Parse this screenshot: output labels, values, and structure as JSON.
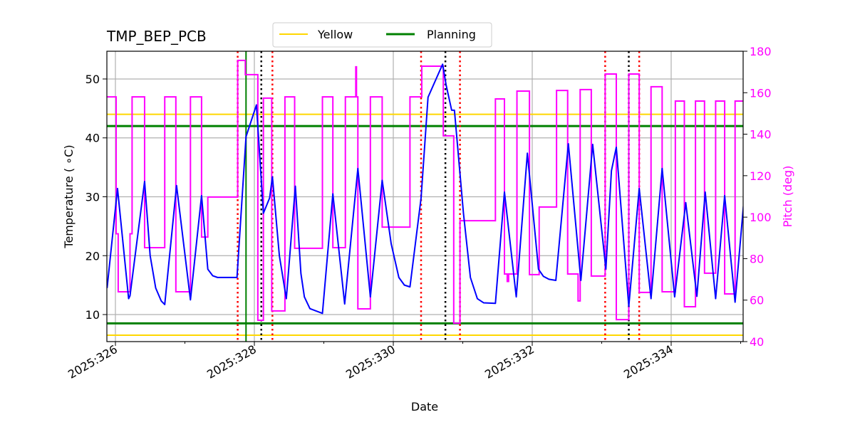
{
  "chart_data": {
    "type": "line",
    "title": "TMP_BEP_PCB",
    "xlabel": "Date",
    "ylabel": "Temperature ( ∘C)",
    "y2label": "Pitch (deg)",
    "xlim": [
      325.877,
      335.036
    ],
    "ylim": [
      5.41,
      54.71
    ],
    "y2lim": [
      40,
      180
    ],
    "grid": true,
    "legend_placement": "top-center (above plot)",
    "x_ticks": [
      {
        "value": 326,
        "label": "2025:326"
      },
      {
        "value": 328,
        "label": "2025:328"
      },
      {
        "value": 330,
        "label": "2025:330"
      },
      {
        "value": 332,
        "label": "2025:332"
      },
      {
        "value": 334,
        "label": "2025:334"
      }
    ],
    "x_minor_ticks": [
      327,
      329,
      331,
      333,
      335
    ],
    "y_ticks": [
      10,
      20,
      30,
      40,
      50
    ],
    "y2_ticks": [
      40,
      60,
      80,
      100,
      120,
      140,
      160,
      180
    ],
    "colors": {
      "temperature": "#0000ff",
      "pitch": "#ff00ff",
      "yellow": "#ffd700",
      "planning": "#008000",
      "red_marker": "#ff0000",
      "black_marker": "#000000",
      "grid": "#b0b0b0"
    },
    "legend": [
      {
        "label": "Yellow",
        "color": "#ffd700"
      },
      {
        "label": "Planning",
        "color": "#008000"
      }
    ],
    "limit_lines": {
      "yellow": [
        44.0,
        6.5
      ],
      "planning": [
        42.0,
        8.5
      ],
      "planning_vertical_day": 327.88
    },
    "red_markers": [
      327.76,
      328.26,
      330.4,
      330.96,
      333.05,
      333.54
    ],
    "black_markers": [
      328.1,
      330.75,
      333.39
    ],
    "temperature": [
      [
        325.88,
        14.5
      ],
      [
        326.03,
        31.4
      ],
      [
        326.19,
        12.7
      ],
      [
        326.21,
        13.2
      ],
      [
        326.42,
        32.6
      ],
      [
        326.5,
        20
      ],
      [
        326.58,
        14.5
      ],
      [
        326.66,
        12.3
      ],
      [
        326.71,
        11.7
      ],
      [
        326.88,
        31.9
      ],
      [
        327.08,
        12.5
      ],
      [
        327.24,
        30.2
      ],
      [
        327.33,
        17.7
      ],
      [
        327.4,
        16.6
      ],
      [
        327.47,
        16.3
      ],
      [
        327.75,
        16.3
      ],
      [
        327.88,
        40.2
      ],
      [
        328.03,
        45.6
      ],
      [
        328.13,
        27.2
      ],
      [
        328.22,
        29.8
      ],
      [
        328.26,
        33.4
      ],
      [
        328.36,
        20
      ],
      [
        328.46,
        12.7
      ],
      [
        328.59,
        31.8
      ],
      [
        328.67,
        17
      ],
      [
        328.72,
        13
      ],
      [
        328.8,
        11
      ],
      [
        328.98,
        10.2
      ],
      [
        329.13,
        30.5
      ],
      [
        329.3,
        11.8
      ],
      [
        329.49,
        34.8
      ],
      [
        329.67,
        13.0
      ],
      [
        329.84,
        32.8
      ],
      [
        329.97,
        22
      ],
      [
        330.08,
        16.3
      ],
      [
        330.16,
        15.0
      ],
      [
        330.24,
        14.7
      ],
      [
        330.4,
        29.8
      ],
      [
        330.5,
        46.9
      ],
      [
        330.62,
        50.1
      ],
      [
        330.71,
        52.5
      ],
      [
        330.76,
        49
      ],
      [
        330.84,
        44.7
      ],
      [
        330.88,
        44.7
      ],
      [
        331.01,
        27.2
      ],
      [
        331.11,
        16.3
      ],
      [
        331.21,
        12.7
      ],
      [
        331.3,
        12.0
      ],
      [
        331.47,
        11.9
      ],
      [
        331.6,
        30.8
      ],
      [
        331.77,
        13.0
      ],
      [
        331.93,
        37.4
      ],
      [
        332.09,
        17.7
      ],
      [
        332.16,
        16.5
      ],
      [
        332.24,
        16.0
      ],
      [
        332.34,
        15.8
      ],
      [
        332.52,
        39.0
      ],
      [
        332.7,
        15.8
      ],
      [
        332.87,
        38.9
      ],
      [
        333.06,
        17.7
      ],
      [
        333.14,
        34.4
      ],
      [
        333.21,
        38.4
      ],
      [
        333.39,
        11.4
      ],
      [
        333.54,
        31.4
      ],
      [
        333.71,
        12.7
      ],
      [
        333.87,
        34.8
      ],
      [
        334.05,
        13.0
      ],
      [
        334.21,
        29.0
      ],
      [
        334.37,
        13.1
      ],
      [
        334.49,
        30.8
      ],
      [
        334.64,
        12.7
      ],
      [
        334.77,
        30.2
      ],
      [
        334.92,
        12.1
      ],
      [
        335.04,
        28.4
      ]
    ],
    "pitch_steps": [
      [
        325.88,
        158
      ],
      [
        326.01,
        92
      ],
      [
        326.04,
        64
      ],
      [
        326.21,
        92
      ],
      [
        326.24,
        158
      ],
      [
        326.42,
        85.3
      ],
      [
        326.71,
        158
      ],
      [
        326.87,
        64
      ],
      [
        327.08,
        158
      ],
      [
        327.24,
        90.4
      ],
      [
        327.33,
        109.7
      ],
      [
        327.76,
        175.6
      ],
      [
        327.87,
        168.7
      ],
      [
        328.05,
        50.3
      ],
      [
        328.13,
        157.4
      ],
      [
        328.25,
        54.8
      ],
      [
        328.44,
        158
      ],
      [
        328.58,
        85
      ],
      [
        328.98,
        158
      ],
      [
        329.13,
        85.3
      ],
      [
        329.31,
        158
      ],
      [
        329.46,
        172.5
      ],
      [
        329.47,
        158
      ],
      [
        329.49,
        55.8
      ],
      [
        329.67,
        158
      ],
      [
        329.84,
        95.2
      ],
      [
        330.24,
        158
      ],
      [
        330.41,
        172.8
      ],
      [
        330.72,
        139.2
      ],
      [
        330.87,
        48.9
      ],
      [
        330.96,
        98.3
      ],
      [
        331.47,
        157
      ],
      [
        331.6,
        72.6
      ],
      [
        331.64,
        69
      ],
      [
        331.66,
        72.6
      ],
      [
        331.78,
        160.8
      ],
      [
        331.96,
        72.3
      ],
      [
        332.1,
        104.9
      ],
      [
        332.35,
        161.1
      ],
      [
        332.51,
        72.6
      ],
      [
        332.66,
        59.6
      ],
      [
        332.69,
        161.5
      ],
      [
        332.85,
        71.6
      ],
      [
        333.05,
        169
      ],
      [
        333.21,
        50.6
      ],
      [
        333.39,
        169
      ],
      [
        333.54,
        63.7
      ],
      [
        333.71,
        162.9
      ],
      [
        333.87,
        64
      ],
      [
        334.06,
        156
      ],
      [
        334.19,
        56.8
      ],
      [
        334.35,
        156
      ],
      [
        334.48,
        73
      ],
      [
        334.64,
        156
      ],
      [
        334.77,
        63
      ],
      [
        334.92,
        156
      ],
      [
        335.04,
        156
      ]
    ]
  }
}
